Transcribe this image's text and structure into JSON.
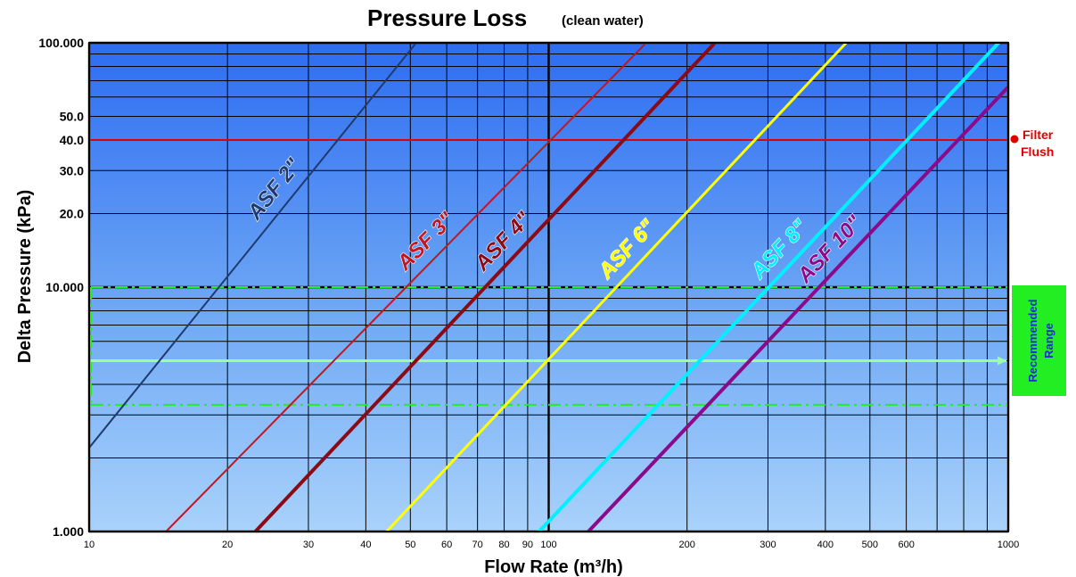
{
  "chart_data": {
    "type": "line",
    "title": "Pressure Loss",
    "subtitle": "(clean water)",
    "xlabel": "Flow Rate (m³/h)",
    "ylabel": "Delta Pressure (kPa)",
    "x_scale": "log",
    "y_scale": "log",
    "xlim": [
      10,
      1000
    ],
    "ylim": [
      1,
      100
    ],
    "x_ticks": [
      10,
      20,
      30,
      40,
      50,
      60,
      70,
      80,
      90,
      100,
      200,
      300,
      400,
      500,
      600,
      1000
    ],
    "x_tick_labels": [
      "10",
      "20",
      "30",
      "40",
      "50",
      "60",
      "70",
      "80",
      "90",
      "100",
      "200",
      "300",
      "400",
      "500",
      "600",
      "1000"
    ],
    "y_ticks": [
      1,
      10,
      20,
      30,
      40,
      50,
      100
    ],
    "y_tick_labels": [
      "1.000",
      "10.000",
      "20.0",
      "30.0",
      "40.0",
      "50.0",
      "100.000"
    ],
    "grid": true,
    "series": [
      {
        "name": "ASF 2\"",
        "color": "#1f3a6e",
        "x": [
          10,
          51.5
        ],
        "y": [
          2.2,
          100
        ]
      },
      {
        "name": "ASF 3\"",
        "color": "#c01822",
        "x": [
          14.7,
          163
        ],
        "y": [
          1,
          100
        ]
      },
      {
        "name": "ASF 4\"",
        "color": "#8b0a14",
        "x": [
          23,
          230
        ],
        "y": [
          1,
          100
        ]
      },
      {
        "name": "ASF 6\"",
        "color": "#ffff00",
        "x": [
          44.4,
          444
        ],
        "y": [
          1,
          100
        ]
      },
      {
        "name": "ASF 8\"",
        "color": "#00f0ff",
        "x": [
          95.3,
          953
        ],
        "y": [
          1,
          100
        ]
      },
      {
        "name": "ASF 10\"",
        "color": "#8a0a8a",
        "x": [
          122,
          1000
        ],
        "y": [
          1,
          66
        ]
      }
    ],
    "annotations": {
      "filter_flush": {
        "text_line1": "Filter",
        "text_line2": "Flush",
        "y": 40,
        "color": "#e00000"
      },
      "recommended_range": {
        "text_line1": "Recommended",
        "text_line2": "Range",
        "y_low": 3.3,
        "y_mid": 5.0,
        "y_high": 10,
        "color": "#22ee22"
      }
    }
  }
}
